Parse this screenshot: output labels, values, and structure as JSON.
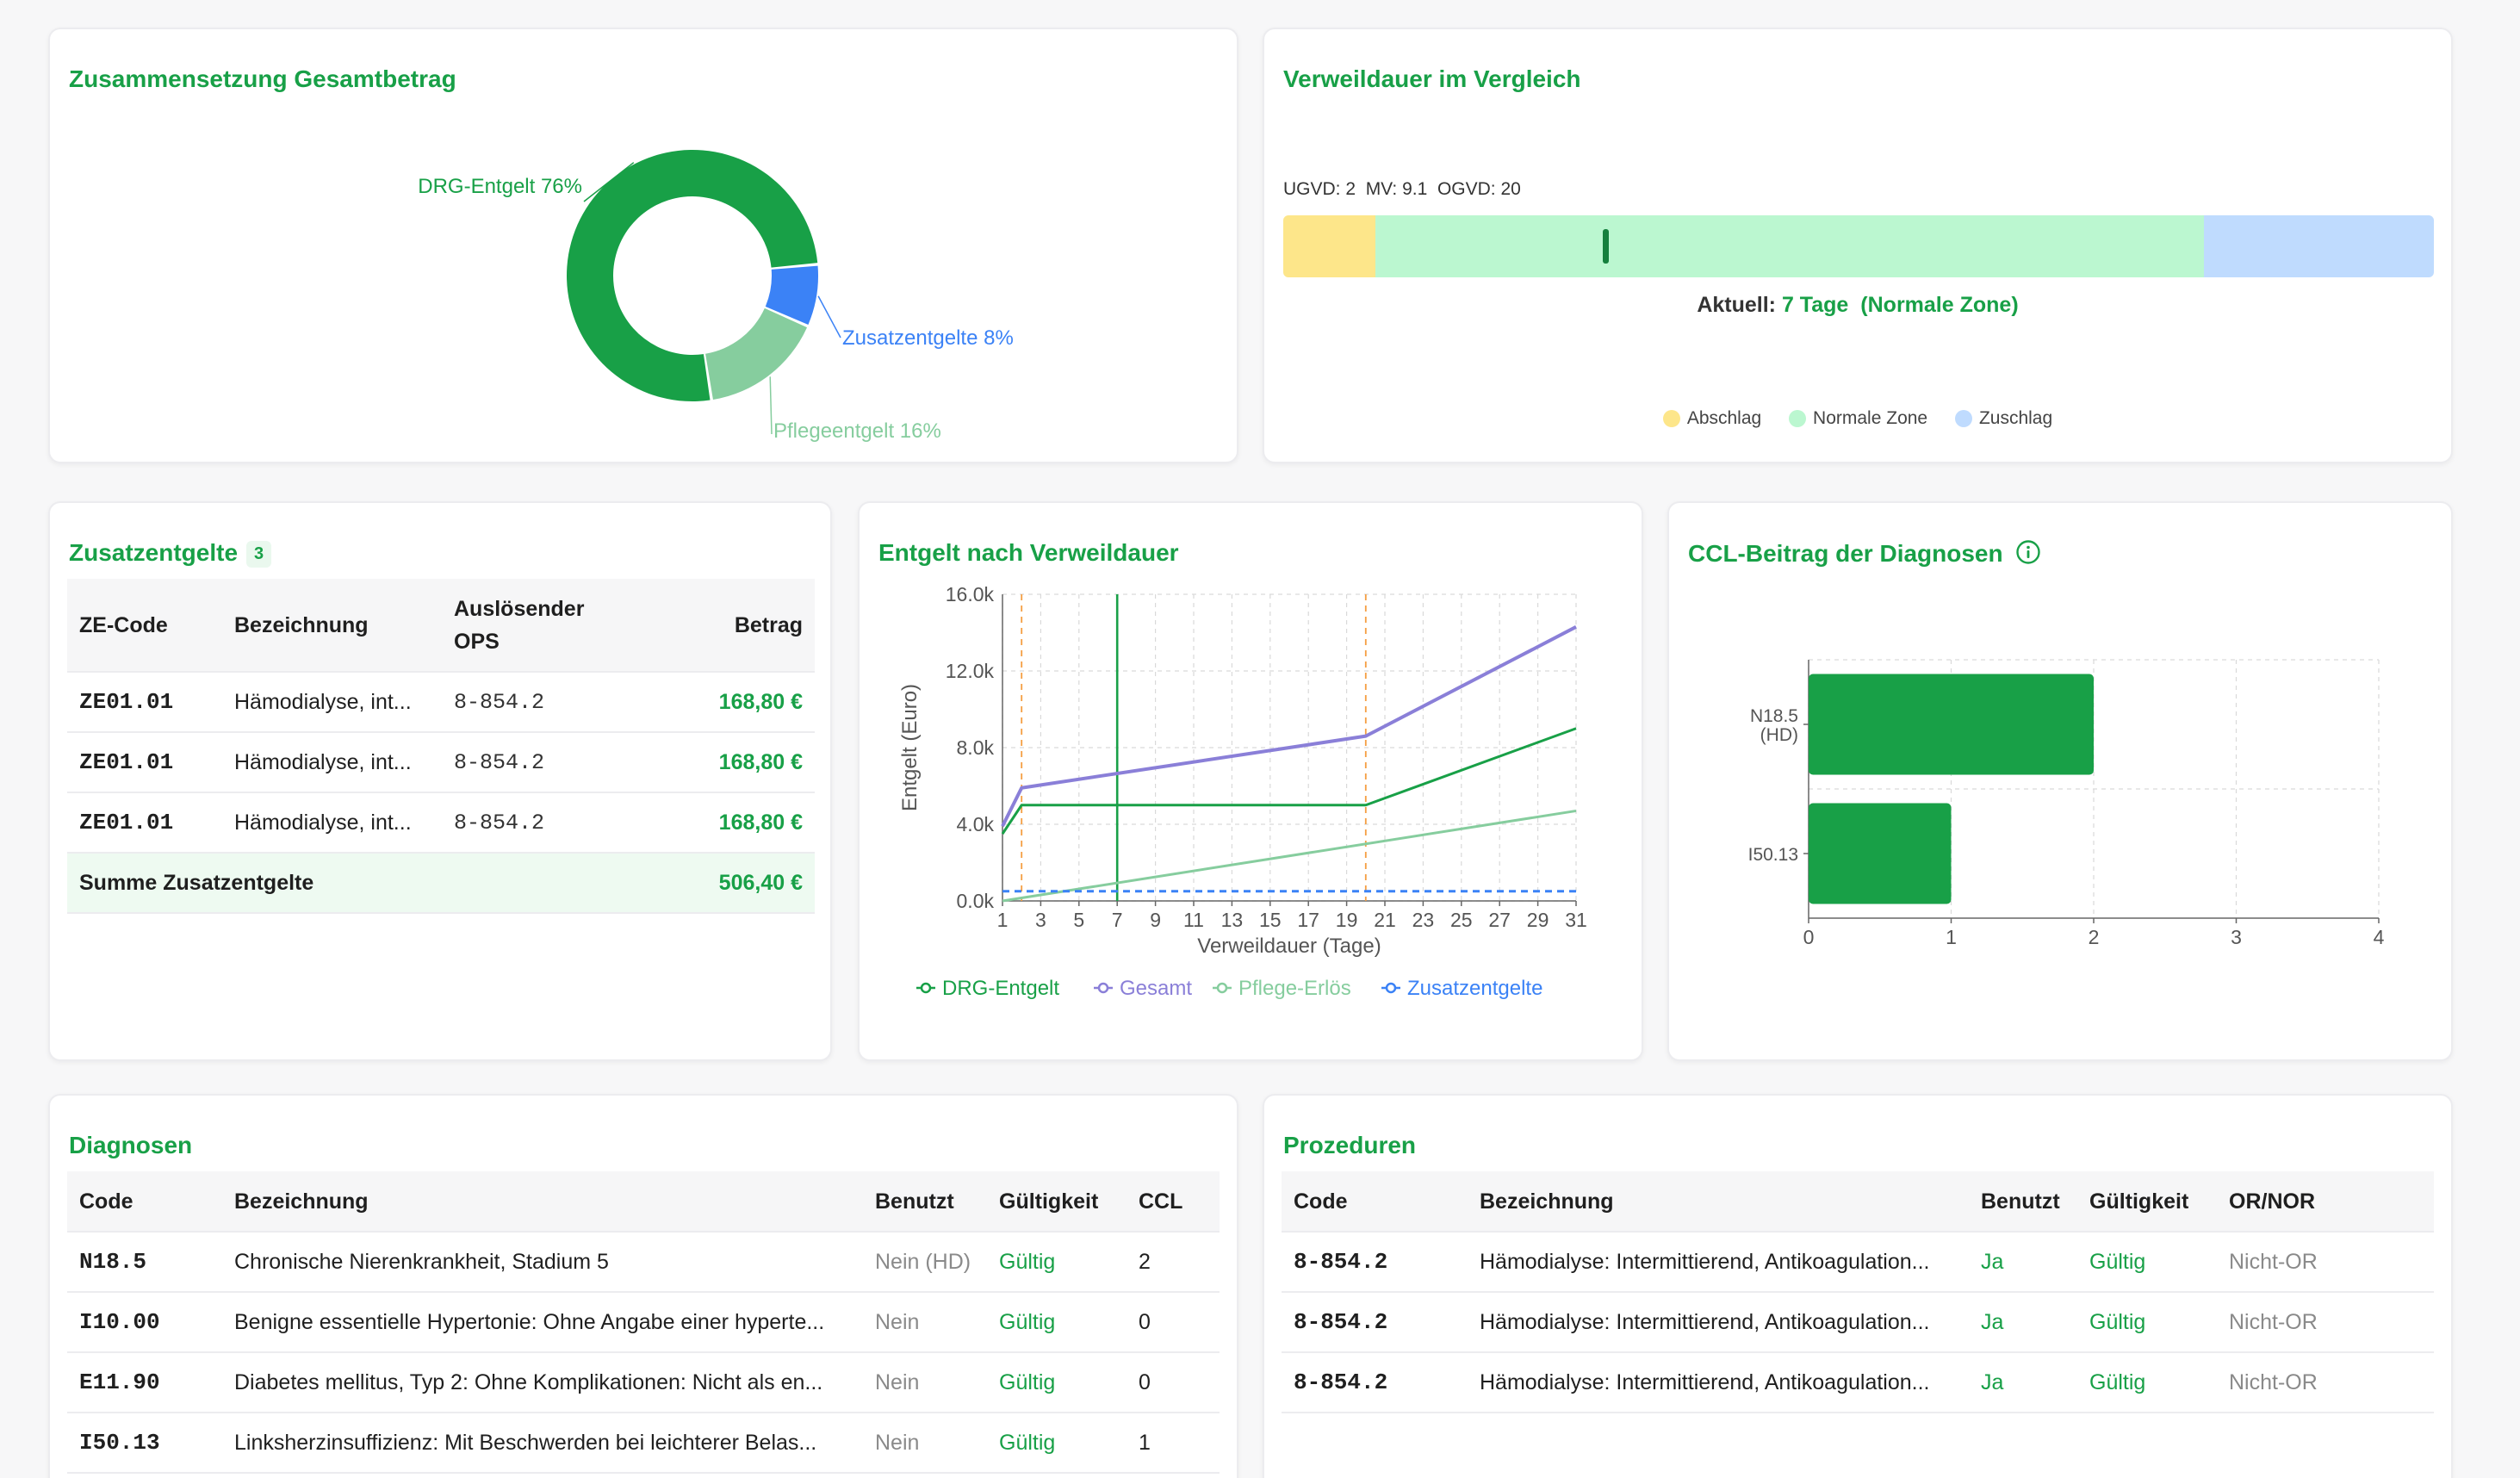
{
  "composition": {
    "title": "Zusammensetzung Gesamtbetrag",
    "colors": {
      "drg": "#18a047",
      "zusatz": "#3b82f6",
      "pflege": "#86cd9e"
    },
    "chart_data": {
      "type": "pie",
      "title": "Zusammensetzung Gesamtbetrag",
      "slices": [
        {
          "label": "DRG-Entgelt 76%",
          "value": 76
        },
        {
          "label": "Zusatzentgelte 8%",
          "value": 8
        },
        {
          "label": "Pflegeentgelt 16%",
          "value": 16
        }
      ]
    }
  },
  "stay": {
    "title": "Verweildauer im Vergleich",
    "stats": "UGVD: 2  MV: 9.1  OGVD: 20",
    "current_prefix": "Aktuell: ",
    "current_value": "7 Tage",
    "current_zone": "(Normale Zone)",
    "legend": [
      "Abschlag",
      "Normale Zone",
      "Zuschlag"
    ],
    "colors": {
      "abschlag": "#fde68a",
      "normal": "#bbf7d0",
      "zuschlag": "#bfdbfe",
      "marker": "#15803d"
    },
    "scale": {
      "ugvd": 2,
      "ogvd": 20,
      "max": 25,
      "current": 7
    }
  },
  "zusatz": {
    "title": "Zusatzentgelte",
    "count": "3",
    "headers": [
      "ZE-Code",
      "Bezeichnung",
      "Auslösender OPS",
      "Betrag"
    ],
    "rows": [
      {
        "code": "ZE01.01",
        "name": "Hämodialyse, int...",
        "ops": "8-854.2",
        "amount": "168,80 €"
      },
      {
        "code": "ZE01.01",
        "name": "Hämodialyse, int...",
        "ops": "8-854.2",
        "amount": "168,80 €"
      },
      {
        "code": "ZE01.01",
        "name": "Hämodialyse, int...",
        "ops": "8-854.2",
        "amount": "168,80 €"
      }
    ],
    "sum_label": "Summe Zusatzentgelte",
    "sum_amount": "506,40 €"
  },
  "entgelt": {
    "title": "Entgelt nach Verweildauer",
    "chart_data": {
      "type": "line",
      "xlabel": "Verweildauer (Tage)",
      "ylabel": "Entgelt (Euro)",
      "xlim": [
        1,
        31
      ],
      "ylim": [
        0,
        16000
      ],
      "xticks": [
        "1",
        "3",
        "5",
        "7",
        "9",
        "11",
        "13",
        "15",
        "17",
        "19",
        "21",
        "23",
        "25",
        "27",
        "29",
        "31"
      ],
      "yticks": [
        "0.0k",
        "4.0k",
        "8.0k",
        "12.0k",
        "16.0k"
      ],
      "vlines_dashed": [
        2,
        20
      ],
      "vline_current": 7,
      "series": [
        {
          "name": "DRG-Entgelt",
          "color": "#18a047",
          "x": [
            1,
            2,
            20,
            31
          ],
          "y": [
            3500,
            5000,
            5000,
            9000
          ]
        },
        {
          "name": "Gesamt",
          "color": "#8a7fd8",
          "x": [
            1,
            2,
            20,
            31
          ],
          "y": [
            3900,
            5900,
            8600,
            14300
          ]
        },
        {
          "name": "Pflege-Erlös",
          "color": "#86cd9e",
          "x": [
            1,
            31
          ],
          "y": [
            0,
            4700
          ]
        },
        {
          "name": "Zusatzentgelte",
          "color": "#3b82f6",
          "x": [
            1,
            31
          ],
          "y": [
            506,
            506
          ],
          "dashed": true
        }
      ]
    }
  },
  "ccl": {
    "title": "CCL-Beitrag der Diagnosen",
    "chart_data": {
      "type": "bar",
      "orientation": "horizontal",
      "categories": [
        "N18.5\n(HD)",
        "I50.13"
      ],
      "values": [
        2,
        1
      ],
      "xlim": [
        0,
        4
      ],
      "xticks": [
        "0",
        "1",
        "2",
        "3",
        "4"
      ],
      "color": "#18a047"
    }
  },
  "diagnosen": {
    "title": "Diagnosen",
    "headers": [
      "Code",
      "Bezeichnung",
      "Benutzt",
      "Gültigkeit",
      "CCL"
    ],
    "rows": [
      {
        "code": "N18.5",
        "name": "Chronische Nierenkrankheit, Stadium 5",
        "used": "Nein (HD)",
        "valid": "Gültig",
        "ccl": "2"
      },
      {
        "code": "I10.00",
        "name": "Benigne essentielle Hypertonie: Ohne Angabe einer hyperte...",
        "used": "Nein",
        "valid": "Gültig",
        "ccl": "0"
      },
      {
        "code": "E11.90",
        "name": "Diabetes mellitus, Typ 2: Ohne Komplikationen: Nicht als en...",
        "used": "Nein",
        "valid": "Gültig",
        "ccl": "0"
      },
      {
        "code": "I50.13",
        "name": "Linksherzinsuffizienz: Mit Beschwerden bei leichterer Belas...",
        "used": "Nein",
        "valid": "Gültig",
        "ccl": "1"
      }
    ]
  },
  "prozeduren": {
    "title": "Prozeduren",
    "headers": [
      "Code",
      "Bezeichnung",
      "Benutzt",
      "Gültigkeit",
      "OR/NOR"
    ],
    "rows": [
      {
        "code": "8-854.2",
        "name": "Hämodialyse: Intermittierend, Antikoagulation...",
        "used": "Ja",
        "valid": "Gültig",
        "ornor": "Nicht-OR"
      },
      {
        "code": "8-854.2",
        "name": "Hämodialyse: Intermittierend, Antikoagulation...",
        "used": "Ja",
        "valid": "Gültig",
        "ornor": "Nicht-OR"
      },
      {
        "code": "8-854.2",
        "name": "Hämodialyse: Intermittierend, Antikoagulation...",
        "used": "Ja",
        "valid": "Gültig",
        "ornor": "Nicht-OR"
      }
    ]
  }
}
